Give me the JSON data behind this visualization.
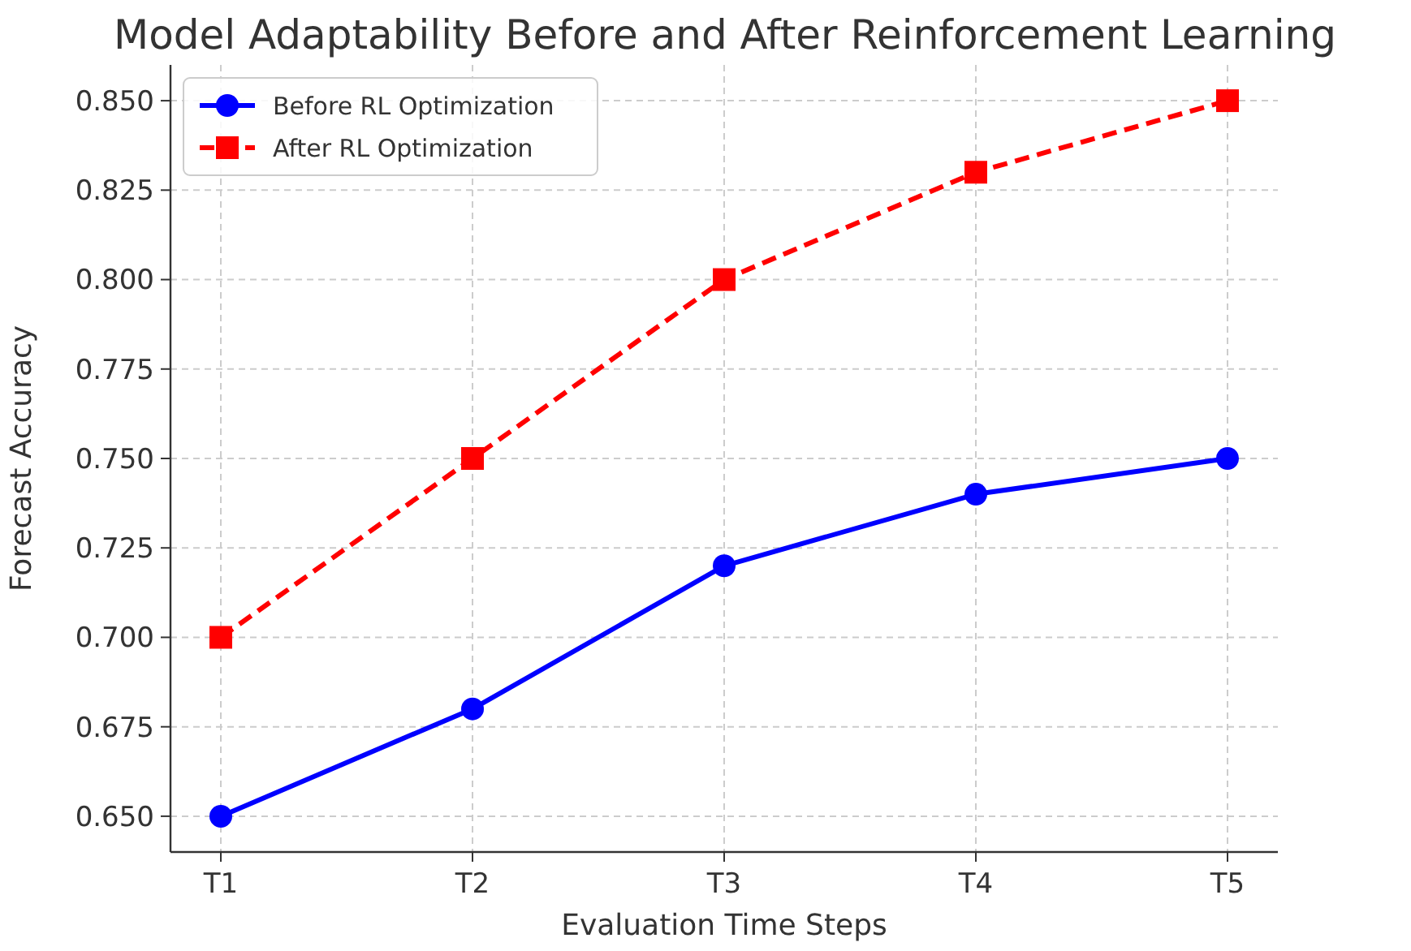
{
  "chart_data": {
    "type": "line",
    "title": "Model Adaptability Before and After Reinforcement Learning",
    "xlabel": "Evaluation Time Steps",
    "ylabel": "Forecast Accuracy",
    "categories": [
      "T1",
      "T2",
      "T3",
      "T4",
      "T5"
    ],
    "series": [
      {
        "name": "Before RL Optimization",
        "color": "#0000ff",
        "values": [
          0.65,
          0.68,
          0.72,
          0.74,
          0.75
        ],
        "marker": "circle",
        "line_style": "solid"
      },
      {
        "name": "After RL Optimization",
        "color": "#ff0000",
        "values": [
          0.7,
          0.75,
          0.8,
          0.83,
          0.85
        ],
        "marker": "square",
        "line_style": "dashed"
      }
    ],
    "ylim": [
      0.64,
      0.86
    ],
    "yticks": [
      {
        "value": 0.65,
        "label": "0.650"
      },
      {
        "value": 0.675,
        "label": "0.675"
      },
      {
        "value": 0.7,
        "label": "0.700"
      },
      {
        "value": 0.725,
        "label": "0.725"
      },
      {
        "value": 0.75,
        "label": "0.750"
      },
      {
        "value": 0.775,
        "label": "0.775"
      },
      {
        "value": 0.8,
        "label": "0.800"
      },
      {
        "value": 0.825,
        "label": "0.825"
      },
      {
        "value": 0.85,
        "label": "0.850"
      }
    ],
    "grid": true,
    "legend": "top left"
  }
}
